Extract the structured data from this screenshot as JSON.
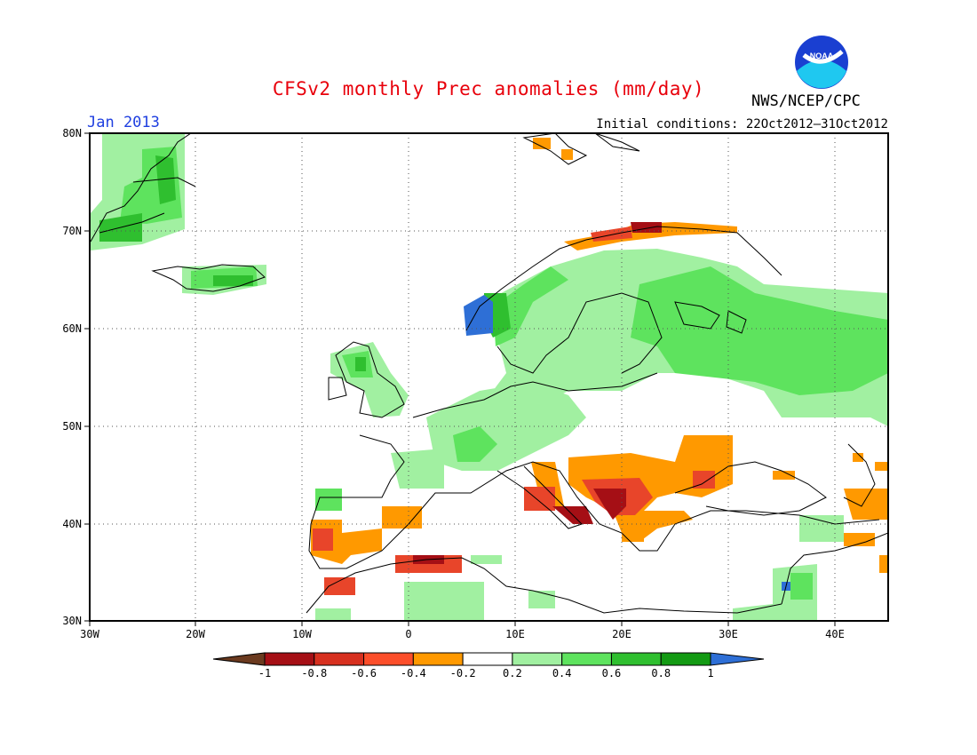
{
  "title": "CFSv2 monthly Prec anomalies (mm/day)",
  "month": "Jan 2013",
  "initial_conditions": "Initial conditions: 22Oct2012–31Oct2012",
  "agency": "NWS/NCEP/CPC",
  "logo": {
    "name": "noaa-logo-icon",
    "text": "NOAA"
  },
  "axes": {
    "lat_ticks": [
      "80N",
      "70N",
      "60N",
      "50N",
      "40N",
      "30N"
    ],
    "lon_ticks": [
      "30W",
      "20W",
      "10W",
      "0",
      "10E",
      "20E",
      "30E",
      "40E"
    ],
    "lat_range": [
      30,
      80
    ],
    "lon_range": [
      -30,
      45
    ],
    "grid": true
  },
  "colorbar": {
    "ticks": [
      "-1",
      "-0.8",
      "-0.6",
      "-0.4",
      "-0.2",
      "0.2",
      "0.4",
      "0.6",
      "0.8",
      "1"
    ],
    "colors": [
      "#6b3a1f",
      "#a50f15",
      "#d7301f",
      "#fc4e2a",
      "#ff9900",
      "#ffffff",
      "#a1f0a1",
      "#5ee35e",
      "#2fbf2f",
      "#139a13",
      "#2e6fd6"
    ]
  },
  "colors": {
    "negative_strong": "#a50f15",
    "negative_mid": "#e8452a",
    "negative_weak": "#ff9900",
    "positive_weak": "#a1f0a1",
    "positive_mid": "#5ee35e",
    "positive_strong": "#2fbf2f",
    "positive_max": "#2e6fd6"
  }
}
